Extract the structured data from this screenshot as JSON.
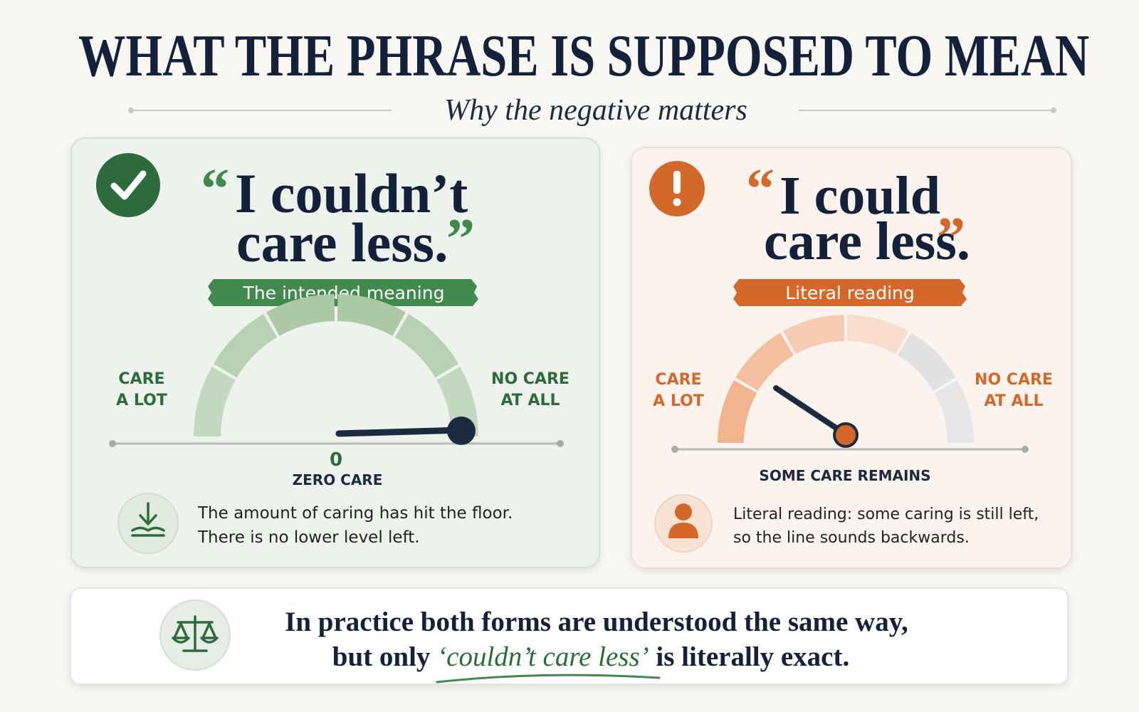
{
  "header": {
    "title": "WHAT THE PHRASE IS SUPPOSED TO MEAN",
    "subtitle": "Why the negative matters"
  },
  "cards": [
    {
      "quote_open": "“",
      "phrase": [
        "I couldn’t",
        "care less."
      ],
      "quote_close": "”",
      "badge": "The intended meaning",
      "gauge": {
        "left_label": [
          "CARE",
          "A LOT"
        ],
        "right_label": [
          "NO CARE",
          "AT ALL"
        ],
        "reading": "0",
        "reading_label": "ZERO CARE"
      },
      "note": [
        "The amount of caring has hit the floor.",
        "There is no lower level left."
      ]
    },
    {
      "quote_open": "“",
      "phrase": [
        "I could",
        "care less."
      ],
      "quote_close": "”",
      "badge": "Literal reading",
      "gauge": {
        "left_label": [
          "CARE",
          "A LOT"
        ],
        "right_label": [
          "NO CARE",
          "AT ALL"
        ],
        "reading_label": "SOME CARE REMAINS"
      },
      "note": [
        "Literal reading: some caring is still left,",
        "so the line sounds backwards."
      ]
    }
  ],
  "footer": {
    "line1": "In practice both forms are understood the same way,",
    "line2_start": "but only",
    "line2_emphasis": "‘couldn’t care less’",
    "line2_end": "is literally exact."
  }
}
